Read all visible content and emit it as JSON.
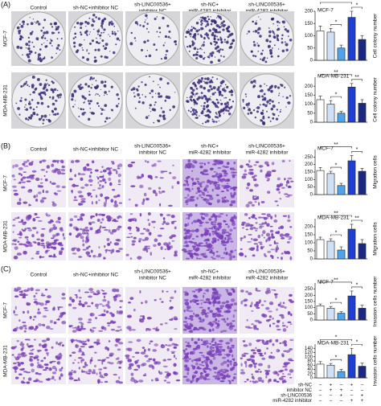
{
  "panels": [
    {
      "label": "(A)",
      "columns": [
        [
          "Control"
        ],
        [
          "sh-NC+inhibitor NC"
        ],
        [
          "sh-LINC00536+",
          "inhibitor NC"
        ],
        [
          "sh-NC+",
          "miR-4282 inhibitor"
        ],
        [
          "sh-LINC00536+",
          "miR-4282 inhibitor"
        ]
      ],
      "rows": [
        "MCF-7",
        "MDA-MB-231"
      ]
    },
    {
      "label": "(B)",
      "columns": [
        [
          "Control"
        ],
        [
          "sh-NC+inhibitor NC"
        ],
        [
          "sh-LINC00536+",
          "inhibitor NC"
        ],
        [
          "sh-NC+",
          "miR-4282 inhibitor"
        ],
        [
          "sh-LINC00536+",
          "miR-4282 inhibitor"
        ]
      ],
      "rows": [
        "MCF-7",
        "MDA-MB-231"
      ]
    },
    {
      "label": "(C)",
      "columns": [
        [
          "Control"
        ],
        [
          "sh-NC+inhibitor NC"
        ],
        [
          "sh-LINC00536+",
          "inhibitor NC"
        ],
        [
          "sh-NC+",
          "miR-4282 inhibitor"
        ],
        [
          "sh-LINC00536+",
          "miR-4282 inhibitor"
        ]
      ],
      "rows": [
        "MCF-7",
        "MDA-MB-231"
      ]
    }
  ],
  "chart_data": [
    {
      "type": "bar",
      "title": "MCF-7",
      "y_label": "Cell colony number",
      "values": [
        120,
        115,
        50,
        175,
        85
      ],
      "errors": [
        20,
        15,
        12,
        25,
        15
      ],
      "colors": [
        "#ffffff",
        "#cfe0f6",
        "#4fa3ec",
        "#1e3fd0",
        "#1b2a80"
      ],
      "ylim": [
        0,
        200
      ],
      "yticks": [
        0,
        50,
        100,
        150,
        200
      ],
      "significance": [
        "**",
        "*",
        "*"
      ]
    },
    {
      "type": "bar",
      "title": "MDA-MB-231",
      "y_label": "Cell colony number",
      "values": [
        125,
        100,
        50,
        195,
        105
      ],
      "errors": [
        20,
        20,
        10,
        20,
        20
      ],
      "colors": [
        "#ffffff",
        "#cfe0f6",
        "#4fa3ec",
        "#1e3fd0",
        "#1b2a80"
      ],
      "ylim": [
        0,
        250
      ],
      "yticks": [
        0,
        50,
        100,
        150,
        200
      ],
      "significance": [
        "**",
        "*",
        "**"
      ]
    },
    {
      "type": "bar",
      "title": "MCF-7",
      "y_label": "Migration cells",
      "values": [
        160,
        140,
        60,
        225,
        155
      ],
      "errors": [
        20,
        15,
        15,
        35,
        20
      ],
      "colors": [
        "#ffffff",
        "#cfe0f6",
        "#4fa3ec",
        "#1e3fd0",
        "#1b2a80"
      ],
      "ylim": [
        0,
        300
      ],
      "yticks": [
        0,
        50,
        100,
        150,
        200,
        250
      ],
      "significance": [
        "**",
        "*",
        "*"
      ]
    },
    {
      "type": "bar",
      "title": "MDA-MB-231",
      "y_label": "Migration cells",
      "values": [
        120,
        110,
        55,
        185,
        95
      ],
      "errors": [
        15,
        15,
        20,
        30,
        25
      ],
      "colors": [
        "#ffffff",
        "#cfe0f6",
        "#4fa3ec",
        "#1e3fd0",
        "#1b2a80"
      ],
      "ylim": [
        0,
        250
      ],
      "yticks": [
        0,
        50,
        100,
        150,
        200
      ],
      "significance": [
        "**",
        "*",
        "**"
      ]
    },
    {
      "type": "bar",
      "title": "MCF-7",
      "y_label": "Invasion cells number",
      "values": [
        115,
        95,
        55,
        195,
        95
      ],
      "errors": [
        15,
        15,
        12,
        40,
        25
      ],
      "colors": [
        "#ffffff",
        "#cfe0f6",
        "#4fa3ec",
        "#1e3fd0",
        "#1b2a80"
      ],
      "ylim": [
        0,
        300
      ],
      "yticks": [
        0,
        50,
        100,
        150,
        200,
        250
      ],
      "significance": [
        "**",
        "*",
        "*"
      ]
    },
    {
      "type": "bar",
      "title": "MDA-MB-231",
      "y_label": "Invasion cells number",
      "values": [
        65,
        60,
        30,
        110,
        55
      ],
      "errors": [
        12,
        8,
        10,
        30,
        15
      ],
      "colors": [
        "#ffffff",
        "#cfe0f6",
        "#4fa3ec",
        "#1e3fd0",
        "#1b2a80"
      ],
      "ylim": [
        0,
        160
      ],
      "yticks": [
        0,
        20,
        40,
        60,
        80,
        100,
        120,
        140
      ],
      "significance": [
        "*",
        "*",
        "*"
      ]
    }
  ],
  "design_table": [
    {
      "label": "sh-NC",
      "signs": [
        "–",
        "+",
        "–",
        "+",
        "–"
      ]
    },
    {
      "label": "inhibitor NC",
      "signs": [
        "–",
        "+",
        "+",
        "–",
        "–"
      ]
    },
    {
      "label": "sh-LINC00536",
      "signs": [
        "–",
        "–",
        "+",
        "–",
        "+"
      ]
    },
    {
      "label": "miR-4282 inhibitor",
      "signs": [
        "–",
        "–",
        "–",
        "+",
        "+"
      ]
    }
  ]
}
